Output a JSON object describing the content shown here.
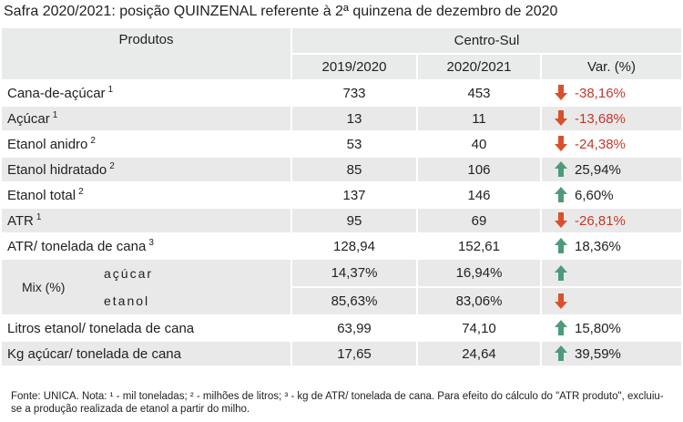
{
  "title": "Safra 2020/2021: posição QUINZENAL referente à 2ª quinzena de dezembro de 2020",
  "table": {
    "header": {
      "products": "Produtos",
      "region": "Centro-Sul",
      "columns": [
        "2019/2020",
        "2020/2021",
        "Var. (%)"
      ]
    },
    "rows": [
      {
        "label": "Cana-de-açúcar",
        "note": "1",
        "values": [
          "733",
          "453",
          "-38,16%"
        ]
      },
      {
        "label": "Açúcar",
        "note": "1",
        "values": [
          "13",
          "11",
          "-13,68%"
        ]
      },
      {
        "label": "Etanol anidro",
        "note": "2",
        "values": [
          "53",
          "40",
          "-24,38%"
        ]
      },
      {
        "label": "Etanol hidratado",
        "note": "2",
        "values": [
          "85",
          "106",
          "25,94%"
        ]
      },
      {
        "label": "Etanol total",
        "note": "2",
        "values": [
          "137",
          "146",
          "6,60%"
        ]
      },
      {
        "label": "ATR",
        "note": "1",
        "values": [
          "95",
          "69",
          "-26,81%"
        ]
      },
      {
        "label": "ATR/ tonelada de cana",
        "note": "3",
        "values": [
          "128,94",
          "152,61",
          "18,36%"
        ]
      },
      {
        "label": "Mix (%)",
        "subrows": [
          {
            "label": "açúcar",
            "values": [
              "14,37%",
              "16,94%"
            ]
          },
          {
            "label": "etanol",
            "values": [
              "85,63%",
              "83,06%"
            ]
          }
        ]
      },
      {
        "label": "Litros etanol/ tonelada de cana",
        "values": [
          "63,99",
          "74,10",
          "15,80%"
        ]
      },
      {
        "label": "Kg açúcar/ tonelada de cana",
        "values": [
          "17,65",
          "24,64",
          "39,59%"
        ]
      }
    ]
  },
  "footer": "Fonte: UNICA. Nota: ¹ - mil toneladas; ² - milhões de litros; ³ - kg de ATR/ tonelada de cana. Para efeito do cálculo do \"ATR produto\", excluiu-se a produção realizada de etanol a partir do milho."
}
